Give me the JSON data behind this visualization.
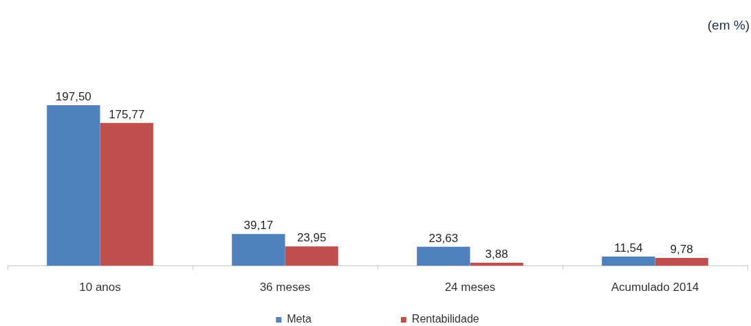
{
  "chart_data": {
    "type": "bar",
    "categories": [
      "10 anos",
      "36 meses",
      "24 meses",
      "Acumulado 2014"
    ],
    "series": [
      {
        "name": "Meta",
        "color": "#4f81bd",
        "values": [
          197.5,
          39.17,
          23.63,
          11.54
        ],
        "value_labels": [
          "197,50",
          "39,17",
          "23,63",
          "11,54"
        ]
      },
      {
        "name": "Rentabilidade",
        "color": "#c0504d",
        "values": [
          175.77,
          23.95,
          3.88,
          9.78
        ],
        "value_labels": [
          "175,77",
          "23,95",
          "3,88",
          "9,78"
        ]
      }
    ],
    "annotations": [
      "(em %)"
    ],
    "legend": "bottom",
    "tick_labels": "x"
  }
}
